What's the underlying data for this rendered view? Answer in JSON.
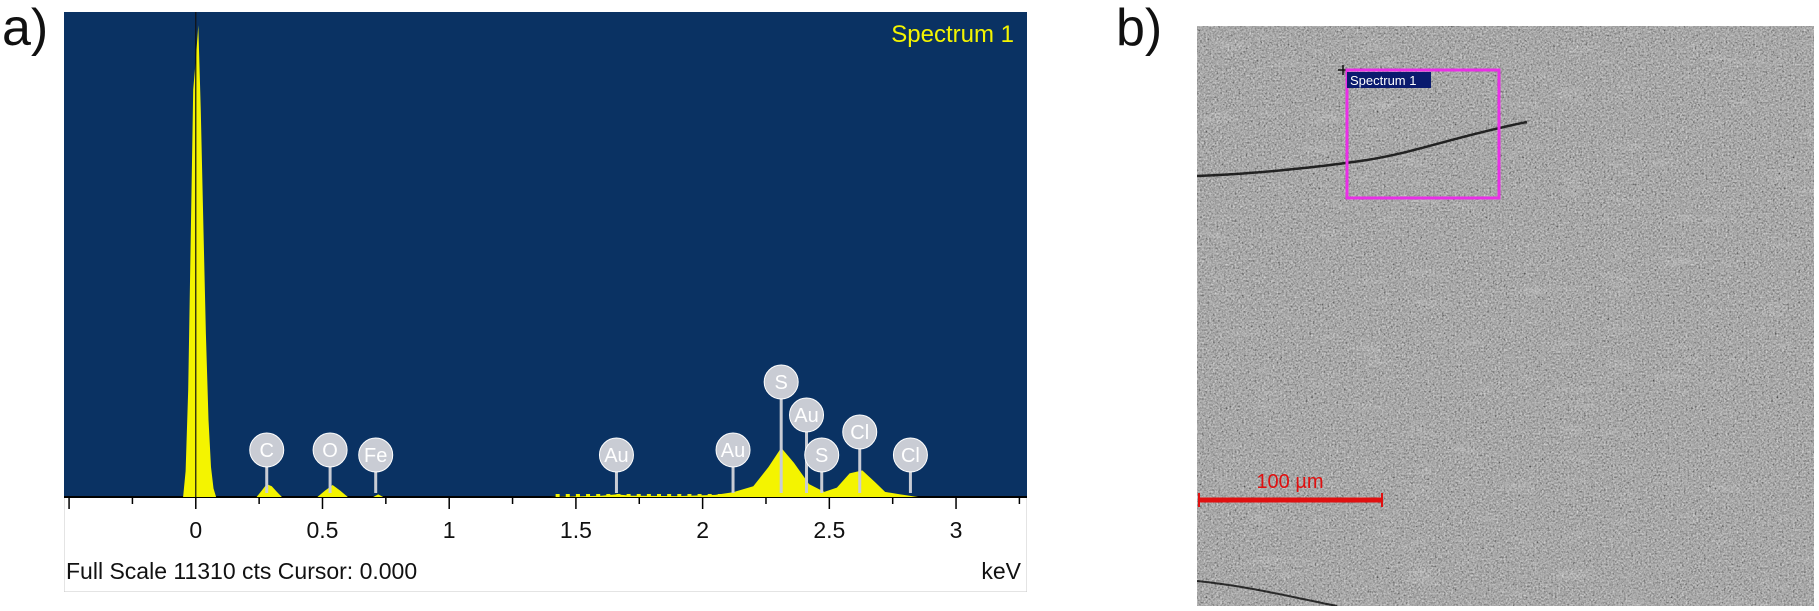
{
  "panel_labels": {
    "a": "a)",
    "b": "b)"
  },
  "colors": {
    "plot_background": "#0a3263",
    "spectrum_fill": "#f4f400",
    "label_bubble": "#c9ccd4",
    "label_text": "#ffffff",
    "roi_box": "#ea2fe6",
    "scale_bar": "#e01010",
    "roi_label_bg": "#0a1a6e"
  },
  "spectrum": {
    "title": "Spectrum 1",
    "footer_left": "Full Scale 11310 cts Cursor: 0.000",
    "footer_right": "keV",
    "element_labels": [
      {
        "text": "C",
        "energy": 0.28
      },
      {
        "text": "O",
        "energy": 0.53
      },
      {
        "text": "Fe",
        "energy": 0.71
      },
      {
        "text": "Au",
        "energy": 1.66
      },
      {
        "text": "Au",
        "energy": 2.12
      },
      {
        "text": "S",
        "energy": 2.31
      },
      {
        "text": "Au",
        "energy": 2.41
      },
      {
        "text": "S",
        "energy": 2.47
      },
      {
        "text": "Cl",
        "energy": 2.62
      },
      {
        "text": "Cl",
        "energy": 2.82
      }
    ]
  },
  "chart_data": {
    "type": "area",
    "title": "Spectrum 1",
    "xlabel": "keV",
    "ylabel": "",
    "xlim": [
      -0.52,
      3.28
    ],
    "ylim": [
      0,
      11310
    ],
    "x_ticks": [
      "0",
      "0.5",
      "1",
      "1.5",
      "2",
      "2.5",
      "3"
    ],
    "grid": false,
    "series": [
      {
        "x": [
          -0.05,
          -0.04,
          -0.03,
          -0.02,
          -0.01,
          0.0,
          0.01,
          0.02,
          0.03,
          0.04,
          0.05,
          0.06,
          0.07,
          0.08,
          0.24,
          0.26,
          0.28,
          0.3,
          0.32,
          0.34,
          0.48,
          0.51,
          0.54,
          0.57,
          0.6,
          0.7,
          0.72,
          0.74,
          1.4,
          1.6,
          1.66,
          1.72,
          1.9,
          2.05,
          2.12,
          2.2,
          2.26,
          2.31,
          2.36,
          2.42,
          2.48,
          2.53,
          2.58,
          2.63,
          2.68,
          2.72,
          2.78,
          2.85
        ],
        "y": [
          0,
          600,
          2500,
          6000,
          9500,
          10200,
          11000,
          9000,
          6300,
          3800,
          1800,
          700,
          200,
          0,
          0,
          150,
          300,
          250,
          120,
          0,
          0,
          150,
          280,
          150,
          0,
          0,
          60,
          0,
          0,
          30,
          60,
          30,
          20,
          50,
          110,
          250,
          700,
          1150,
          800,
          300,
          120,
          220,
          550,
          620,
          350,
          120,
          60,
          0
        ]
      }
    ]
  },
  "sem": {
    "roi_label": "Spectrum 1",
    "scale_bar_label": "100 µm"
  }
}
